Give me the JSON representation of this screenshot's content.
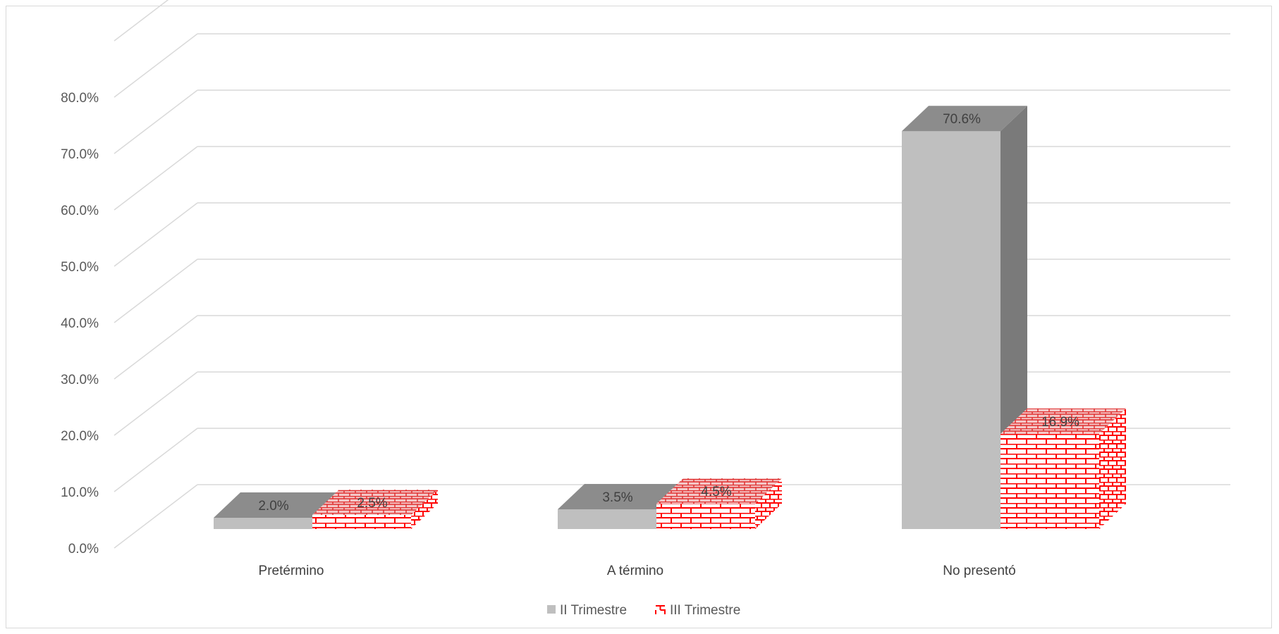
{
  "chart_data": {
    "type": "bar",
    "categories": [
      "Pretérmino",
      "A término",
      "No presentó"
    ],
    "series": [
      {
        "name": "II Trimestre",
        "values": [
          2.0,
          3.5,
          70.6
        ],
        "labels": [
          "2.0%",
          "3.5%",
          "70.6%"
        ],
        "style": "solid-gray"
      },
      {
        "name": "III Trimestre",
        "values": [
          2.5,
          4.5,
          16.9
        ],
        "labels": [
          "2.5%",
          "4.5%",
          "16.9%"
        ],
        "style": "red-brick"
      }
    ],
    "yticks": [
      "0.0%",
      "10.0%",
      "20.0%",
      "30.0%",
      "40.0%",
      "50.0%",
      "60.0%",
      "70.0%",
      "80.0%"
    ],
    "ylim": [
      0,
      90
    ],
    "grid": true,
    "legend_position": "bottom",
    "colors": {
      "gray_front": "#bfbfbf",
      "gray_top": "#8c8c8c",
      "gray_side": "#7a7a7a",
      "brick_line": "#ff0000",
      "grid": "#d9d9d9"
    }
  }
}
